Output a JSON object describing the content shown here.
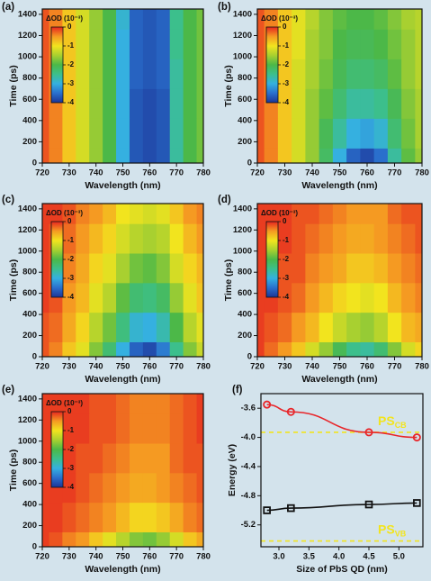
{
  "chart_data": [
    {
      "type": "heatmap",
      "label": "(a)",
      "xlabel": "Wavelength (nm)",
      "ylabel": "Time (ps)",
      "colorbar_title": "ΔOD (10⁻³)",
      "x": [
        720,
        725,
        730,
        735,
        740,
        745,
        750,
        755,
        760,
        765,
        770,
        775,
        780
      ],
      "y": [
        0,
        280,
        560,
        840,
        1120,
        1400
      ],
      "z": [
        [
          -0.2,
          -0.4,
          -0.8,
          -1.2,
          -1.6,
          -2.0,
          -3.0,
          -3.7,
          -3.8,
          -3.7,
          -2.6,
          -2.0,
          -1.8
        ],
        [
          -0.2,
          -0.4,
          -0.8,
          -1.2,
          -1.6,
          -2.0,
          -3.0,
          -3.7,
          -3.8,
          -3.7,
          -2.6,
          -2.0,
          -1.8
        ],
        [
          -0.2,
          -0.4,
          -0.8,
          -1.2,
          -1.6,
          -2.0,
          -3.0,
          -3.7,
          -3.8,
          -3.7,
          -2.6,
          -2.0,
          -1.8
        ],
        [
          -0.2,
          -0.4,
          -0.8,
          -1.2,
          -1.6,
          -2.0,
          -3.0,
          -3.6,
          -3.7,
          -3.6,
          -2.6,
          -2.0,
          -1.8
        ],
        [
          -0.2,
          -0.4,
          -0.8,
          -1.2,
          -1.6,
          -2.0,
          -3.0,
          -3.6,
          -3.7,
          -3.6,
          -2.5,
          -2.0,
          -1.8
        ],
        [
          -0.2,
          -0.4,
          -0.8,
          -1.2,
          -1.6,
          -2.0,
          -2.9,
          -3.6,
          -3.7,
          -3.6,
          -2.5,
          -2.0,
          -1.8
        ]
      ],
      "xlim": [
        720,
        780
      ],
      "ylim": [
        0,
        1450
      ],
      "xticks": [
        720,
        730,
        740,
        750,
        760,
        770,
        780
      ],
      "yticks": [
        0,
        200,
        400,
        600,
        800,
        1000,
        1200,
        1400
      ],
      "zlim": [
        -4,
        0
      ],
      "zticks": [
        0,
        -1,
        -2,
        -3,
        -4
      ],
      "colors": [
        "#1c3596",
        "#2a6fcc",
        "#35b0e0",
        "#3cbf8c",
        "#4cb848",
        "#a8d030",
        "#f2e41e",
        "#f59a22",
        "#e6261f"
      ]
    },
    {
      "type": "heatmap",
      "label": "(b)",
      "xlabel": "Wavelength (nm)",
      "ylabel": "Time (ps)",
      "colorbar_title": "ΔOD (10⁻³)",
      "x": [
        720,
        725,
        730,
        735,
        740,
        745,
        750,
        755,
        760,
        765,
        770,
        775,
        780
      ],
      "y": [
        0,
        280,
        560,
        840,
        1120,
        1400
      ],
      "z": [
        [
          -0.2,
          -0.4,
          -0.8,
          -1.2,
          -1.6,
          -2.2,
          -3.0,
          -3.6,
          -3.8,
          -3.5,
          -2.6,
          -1.9,
          -1.6
        ],
        [
          -0.2,
          -0.4,
          -0.8,
          -1.2,
          -1.6,
          -2.1,
          -2.6,
          -3.0,
          -3.1,
          -2.9,
          -2.3,
          -1.8,
          -1.5
        ],
        [
          -0.2,
          -0.4,
          -0.8,
          -1.2,
          -1.6,
          -1.9,
          -2.3,
          -2.6,
          -2.6,
          -2.5,
          -2.1,
          -1.7,
          -1.5
        ],
        [
          -0.2,
          -0.4,
          -0.8,
          -1.2,
          -1.5,
          -1.8,
          -2.1,
          -2.3,
          -2.3,
          -2.2,
          -1.9,
          -1.6,
          -1.4
        ],
        [
          -0.2,
          -0.4,
          -0.8,
          -1.1,
          -1.5,
          -1.7,
          -2.0,
          -2.1,
          -2.1,
          -2.0,
          -1.8,
          -1.6,
          -1.4
        ],
        [
          -0.2,
          -0.4,
          -0.8,
          -1.1,
          -1.4,
          -1.7,
          -1.9,
          -2.0,
          -2.0,
          -1.9,
          -1.7,
          -1.5,
          -1.4
        ]
      ],
      "xlim": [
        720,
        780
      ],
      "ylim": [
        0,
        1450
      ],
      "xticks": [
        720,
        730,
        740,
        750,
        760,
        770,
        780
      ],
      "yticks": [
        0,
        200,
        400,
        600,
        800,
        1000,
        1200,
        1400
      ],
      "zlim": [
        -4,
        0
      ],
      "zticks": [
        0,
        -1,
        -2,
        -3,
        -4
      ],
      "colors": [
        "#1c3596",
        "#2a6fcc",
        "#35b0e0",
        "#3cbf8c",
        "#4cb848",
        "#a8d030",
        "#f2e41e",
        "#f59a22",
        "#e6261f"
      ]
    },
    {
      "type": "heatmap",
      "label": "(c)",
      "xlabel": "Wavelength (nm)",
      "ylabel": "Time (ps)",
      "colorbar_title": "ΔOD (10⁻³)",
      "x": [
        720,
        725,
        730,
        735,
        740,
        745,
        750,
        755,
        760,
        765,
        770,
        775,
        780
      ],
      "y": [
        0,
        280,
        560,
        840,
        1120,
        1400
      ],
      "z": [
        [
          -0.2,
          -0.4,
          -0.8,
          -1.1,
          -1.7,
          -2.3,
          -3.0,
          -3.6,
          -3.8,
          -3.4,
          -2.5,
          -1.7,
          -1.3
        ],
        [
          -0.2,
          -0.3,
          -0.6,
          -0.9,
          -1.4,
          -1.8,
          -2.4,
          -2.9,
          -3.0,
          -2.7,
          -2.0,
          -1.4,
          -1.1
        ],
        [
          -0.1,
          -0.2,
          -0.5,
          -0.7,
          -1.1,
          -1.4,
          -1.9,
          -2.3,
          -2.4,
          -2.2,
          -1.6,
          -1.1,
          -0.8
        ],
        [
          -0.1,
          -0.2,
          -0.4,
          -0.6,
          -0.9,
          -1.1,
          -1.5,
          -1.8,
          -1.9,
          -1.7,
          -1.2,
          -0.9,
          -0.7
        ],
        [
          -0.1,
          -0.2,
          -0.3,
          -0.5,
          -0.7,
          -0.9,
          -1.2,
          -1.4,
          -1.5,
          -1.4,
          -1.0,
          -0.7,
          -0.5
        ],
        [
          -0.1,
          -0.1,
          -0.2,
          -0.4,
          -0.5,
          -0.7,
          -1.0,
          -1.1,
          -1.2,
          -1.1,
          -0.8,
          -0.5,
          -0.4
        ]
      ],
      "xlim": [
        720,
        780
      ],
      "ylim": [
        0,
        1450
      ],
      "xticks": [
        720,
        730,
        740,
        750,
        760,
        770,
        780
      ],
      "yticks": [
        0,
        200,
        400,
        600,
        800,
        1000,
        1200,
        1400
      ],
      "zlim": [
        -4,
        0
      ],
      "zticks": [
        0,
        -1,
        -2,
        -3,
        -4
      ],
      "colors": [
        "#1c3596",
        "#2a6fcc",
        "#35b0e0",
        "#3cbf8c",
        "#4cb848",
        "#a8d030",
        "#f2e41e",
        "#f59a22",
        "#e6261f"
      ]
    },
    {
      "type": "heatmap",
      "label": "(d)",
      "xlabel": "Wavelength (nm)",
      "ylabel": "Time (ps)",
      "colorbar_title": "ΔOD (10⁻³)",
      "x": [
        720,
        725,
        730,
        735,
        740,
        745,
        750,
        755,
        760,
        765,
        770,
        775,
        780
      ],
      "y": [
        0,
        280,
        560,
        840,
        1120,
        1400
      ],
      "z": [
        [
          -0.1,
          -0.3,
          -0.5,
          -0.8,
          -1.2,
          -1.6,
          -2.1,
          -2.5,
          -2.6,
          -2.3,
          -1.7,
          -1.2,
          -0.9
        ],
        [
          -0.1,
          -0.2,
          -0.3,
          -0.5,
          -0.7,
          -1.0,
          -1.3,
          -1.5,
          -1.6,
          -1.4,
          -1.0,
          -0.7,
          -0.6
        ],
        [
          -0.1,
          -0.1,
          -0.2,
          -0.3,
          -0.5,
          -0.7,
          -0.9,
          -1.0,
          -1.1,
          -1.0,
          -0.7,
          -0.5,
          -0.4
        ],
        [
          -0.1,
          -0.1,
          -0.2,
          -0.2,
          -0.4,
          -0.5,
          -0.6,
          -0.8,
          -0.8,
          -0.7,
          -0.5,
          -0.4,
          -0.3
        ],
        [
          -0.1,
          -0.1,
          -0.1,
          -0.2,
          -0.3,
          -0.4,
          -0.5,
          -0.6,
          -0.6,
          -0.5,
          -0.4,
          -0.3,
          -0.2
        ],
        [
          -0.1,
          -0.1,
          -0.1,
          -0.2,
          -0.2,
          -0.3,
          -0.4,
          -0.5,
          -0.5,
          -0.5,
          -0.3,
          -0.2,
          -0.2
        ]
      ],
      "xlim": [
        720,
        780
      ],
      "ylim": [
        0,
        1450
      ],
      "xticks": [
        720,
        730,
        740,
        750,
        760,
        770,
        780
      ],
      "yticks": [
        0,
        200,
        400,
        600,
        800,
        1000,
        1200,
        1400
      ],
      "zlim": [
        -4,
        0
      ],
      "zticks": [
        0,
        -1,
        -2,
        -3,
        -4
      ],
      "colors": [
        "#1c3596",
        "#2a6fcc",
        "#35b0e0",
        "#3cbf8c",
        "#4cb848",
        "#a8d030",
        "#f2e41e",
        "#f59a22",
        "#e6261f"
      ]
    },
    {
      "type": "heatmap",
      "label": "(e)",
      "xlabel": "Wavelength (nm)",
      "ylabel": "Time (ps)",
      "colorbar_title": "ΔOD (10⁻³)",
      "x": [
        720,
        725,
        730,
        735,
        740,
        745,
        750,
        755,
        760,
        765,
        770,
        775,
        780
      ],
      "y": [
        0,
        280,
        560,
        840,
        1120,
        1400
      ],
      "z": [
        [
          -0.1,
          -0.2,
          -0.4,
          -0.5,
          -0.8,
          -1.1,
          -1.4,
          -1.7,
          -1.8,
          -1.6,
          -1.2,
          -0.8,
          -0.6
        ],
        [
          -0.1,
          -0.1,
          -0.2,
          -0.3,
          -0.4,
          -0.5,
          -0.7,
          -0.9,
          -0.9,
          -0.8,
          -0.6,
          -0.4,
          -0.3
        ],
        [
          -0.1,
          -0.1,
          -0.1,
          -0.2,
          -0.3,
          -0.4,
          -0.5,
          -0.6,
          -0.6,
          -0.5,
          -0.4,
          -0.3,
          -0.2
        ],
        [
          -0.1,
          -0.1,
          -0.1,
          -0.2,
          -0.2,
          -0.3,
          -0.4,
          -0.5,
          -0.5,
          -0.5,
          -0.3,
          -0.2,
          -0.2
        ],
        [
          -0.1,
          -0.1,
          -0.1,
          -0.1,
          -0.2,
          -0.2,
          -0.3,
          -0.4,
          -0.4,
          -0.4,
          -0.3,
          -0.2,
          -0.1
        ],
        [
          -0.1,
          -0.1,
          -0.1,
          -0.1,
          -0.2,
          -0.2,
          -0.3,
          -0.4,
          -0.4,
          -0.4,
          -0.3,
          -0.2,
          -0.1
        ]
      ],
      "xlim": [
        720,
        780
      ],
      "ylim": [
        0,
        1450
      ],
      "xticks": [
        720,
        730,
        740,
        750,
        760,
        770,
        780
      ],
      "yticks": [
        0,
        200,
        400,
        600,
        800,
        1000,
        1200,
        1400
      ],
      "zlim": [
        -4,
        0
      ],
      "zticks": [
        0,
        -1,
        -2,
        -3,
        -4
      ],
      "colors": [
        "#1c3596",
        "#2a6fcc",
        "#35b0e0",
        "#3cbf8c",
        "#4cb848",
        "#a8d030",
        "#f2e41e",
        "#f59a22",
        "#e6261f"
      ]
    },
    {
      "type": "scatter",
      "label": "(f)",
      "xlabel": "Size of PbS QD (nm)",
      "ylabel": "Energy (eV)",
      "series": [
        {
          "color": "#e8262a",
          "marker": "circle",
          "x": [
            2.8,
            3.2,
            4.5,
            5.3
          ],
          "values": [
            -3.55,
            -3.65,
            -3.93,
            -4.0
          ]
        },
        {
          "color": "#111111",
          "marker": "square",
          "x": [
            2.8,
            3.2,
            4.5,
            5.3
          ],
          "values": [
            -5.0,
            -4.97,
            -4.92,
            -4.9
          ]
        }
      ],
      "hlines": [
        {
          "value": -3.93,
          "label": "PS",
          "sub": "CB",
          "color": "#f2e41e"
        },
        {
          "value": -5.42,
          "label": "PS",
          "sub": "VB",
          "color": "#f2e41e"
        }
      ],
      "xlim": [
        2.7,
        5.4
      ],
      "ylim": [
        -5.5,
        -3.4
      ],
      "xticks": [
        {
          "value": 3,
          "label": "3.0"
        },
        3.5,
        {
          "value": 4,
          "label": "4.0"
        },
        4.5,
        {
          "value": 5,
          "label": "5.0"
        }
      ],
      "yticks": [
        -3.6,
        {
          "value": -4,
          "label": "-4.0"
        },
        -4.4,
        -4.8,
        -5.2
      ]
    }
  ]
}
